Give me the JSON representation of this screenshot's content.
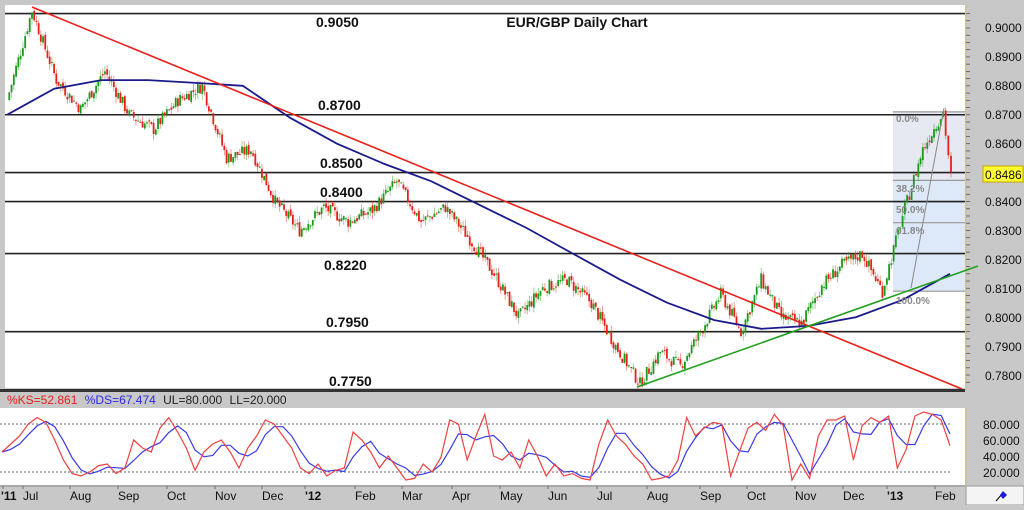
{
  "chart_data": [
    {
      "type": "candlestick",
      "title": "EUR/GBP Daily Chart",
      "xlabel": "",
      "ylabel": "",
      "ylim": [
        0.775,
        0.908
      ],
      "grid": false,
      "y_ticks": [
        "0.9000",
        "0.8900",
        "0.8800",
        "0.8700",
        "0.8600",
        "0.8500",
        "0.8400",
        "0.8300",
        "0.8200",
        "0.8100",
        "0.8000",
        "0.7900",
        "0.7800"
      ],
      "x_ticks": [
        "'11",
        "Jul",
        "Aug",
        "Sep",
        "Oct",
        "Nov",
        "Dec",
        "'12",
        "Feb",
        "Mar",
        "Apr",
        "May",
        "Jun",
        "Jul",
        "Aug",
        "Sep",
        "Oct",
        "Nov",
        "Dec",
        "'13",
        "Feb"
      ],
      "last_price": "0.8486",
      "horizontal_levels": [
        {
          "label": "0.9050",
          "value": 0.905
        },
        {
          "label": "0.8700",
          "value": 0.87
        },
        {
          "label": "0.8500",
          "value": 0.85
        },
        {
          "label": "0.8400",
          "value": 0.84
        },
        {
          "label": "0.8220",
          "value": 0.822
        },
        {
          "label": "0.7950",
          "value": 0.795
        },
        {
          "label": "0.7750",
          "value": 0.775
        }
      ],
      "fibonacci": {
        "high": 0.871,
        "low": 0.809,
        "levels": [
          {
            "label": "0.0%",
            "ratio": 0.0
          },
          {
            "label": "38.2%",
            "ratio": 0.382
          },
          {
            "label": "50.0%",
            "ratio": 0.5
          },
          {
            "label": "61.8%",
            "ratio": 0.618
          },
          {
            "label": "100.0%",
            "ratio": 1.0
          }
        ]
      },
      "trendlines": [
        {
          "name": "downtrend-resistance",
          "color": "#e8201a",
          "from": [
            "Jul 2011",
            0.907
          ],
          "to": [
            "Feb 2013",
            0.776
          ]
        },
        {
          "name": "uptrend-support",
          "color": "#22a020",
          "from": [
            "Jul 2012",
            0.777
          ],
          "to": [
            "Feb 2013",
            0.817
          ]
        }
      ],
      "moving_average": {
        "name": "200-day MA",
        "color": "#1a1a8c",
        "points": [
          [
            "Jun 2011",
            0.87
          ],
          [
            "Jul 2011",
            0.879
          ],
          [
            "Aug 2011",
            0.882
          ],
          [
            "Sep 2011",
            0.882
          ],
          [
            "Oct 2011",
            0.881
          ],
          [
            "Nov 2011",
            0.88
          ],
          [
            "Dec 2011",
            0.869
          ],
          [
            "Jan 2012",
            0.86
          ],
          [
            "Feb 2012",
            0.853
          ],
          [
            "Mar 2012",
            0.847
          ],
          [
            "Apr 2012",
            0.839
          ],
          [
            "May 2012",
            0.831
          ],
          [
            "Jun 2012",
            0.822
          ],
          [
            "Jul 2012",
            0.813
          ],
          [
            "Aug 2012",
            0.805
          ],
          [
            "Sep 2012",
            0.799
          ],
          [
            "Oct 2012",
            0.796
          ],
          [
            "Nov 2012",
            0.797
          ],
          [
            "Dec 2012",
            0.8
          ],
          [
            "Jan 2013",
            0.806
          ],
          [
            "Feb 2013",
            0.815
          ]
        ]
      },
      "price_path": [
        [
          "Jun 2011",
          0.875
        ],
        [
          "early Jul 2011",
          0.906
        ],
        [
          "mid Jul 2011",
          0.882
        ],
        [
          "Aug 2011",
          0.872
        ],
        [
          "early Sep 2011",
          0.885
        ],
        [
          "Sep 2011",
          0.87
        ],
        [
          "Oct 2011",
          0.865
        ],
        [
          "Oct 2011",
          0.875
        ],
        [
          "early Nov 2011",
          0.88
        ],
        [
          "Nov 2011",
          0.855
        ],
        [
          "Dec 2011",
          0.858
        ],
        [
          "Dec 2011",
          0.84
        ],
        [
          "Jan 2012",
          0.83
        ],
        [
          "Jan 2012",
          0.838
        ],
        [
          "Feb 2012",
          0.833
        ],
        [
          "Feb 2012",
          0.837
        ],
        [
          "early Mar 2012",
          0.847
        ],
        [
          "Mar 2012",
          0.833
        ],
        [
          "Mar 2012",
          0.838
        ],
        [
          "Apr 2012",
          0.827
        ],
        [
          "Apr 2012",
          0.815
        ],
        [
          "May 2012",
          0.8
        ],
        [
          "May 2012",
          0.81
        ],
        [
          "Jun 2012",
          0.813
        ],
        [
          "Jun 2012",
          0.805
        ],
        [
          "Jul 2012",
          0.79
        ],
        [
          "late Jul 2012",
          0.777
        ],
        [
          "Aug 2012",
          0.788
        ],
        [
          "Aug 2012",
          0.783
        ],
        [
          "Sep 2012",
          0.795
        ],
        [
          "Sep 2012",
          0.808
        ],
        [
          "Oct 2012",
          0.795
        ],
        [
          "Oct 2012",
          0.813
        ],
        [
          "Nov 2012",
          0.8
        ],
        [
          "Nov 2012",
          0.798
        ],
        [
          "Dec 2012",
          0.811
        ],
        [
          "Dec 2012",
          0.818
        ],
        [
          "early Jan 2013",
          0.822
        ],
        [
          "Jan 2013",
          0.809
        ],
        [
          "Jan 2013",
          0.835
        ],
        [
          "Jan 2013",
          0.858
        ],
        [
          "Feb 2013",
          0.871
        ],
        [
          "Feb 2013",
          0.8486
        ]
      ]
    },
    {
      "type": "line",
      "title": "Slow Stochastic",
      "series": [
        {
          "name": "%KS",
          "value": "52.861",
          "color": "#e8201a"
        },
        {
          "name": "%DS",
          "value": "67.474",
          "color": "#2a2ae8"
        }
      ],
      "upper_limit": 80,
      "lower_limit": 20,
      "ylim": [
        0,
        100
      ],
      "y_ticks": [
        "80.000",
        "60.000",
        "40.000",
        "20.000"
      ],
      "k_values": [
        45,
        55,
        65,
        80,
        88,
        82,
        60,
        35,
        18,
        15,
        20,
        28,
        30,
        18,
        25,
        60,
        50,
        45,
        75,
        88,
        70,
        50,
        22,
        45,
        55,
        60,
        45,
        25,
        50,
        65,
        85,
        80,
        65,
        50,
        25,
        18,
        30,
        15,
        22,
        25,
        70,
        60,
        45,
        25,
        40,
        25,
        10,
        12,
        30,
        20,
        38,
        85,
        80,
        35,
        65,
        92,
        40,
        35,
        45,
        25,
        60,
        40,
        15,
        30,
        15,
        18,
        12,
        10,
        55,
        85,
        65,
        55,
        40,
        30,
        10,
        12,
        15,
        35,
        88,
        65,
        75,
        82,
        80,
        15,
        45,
        75,
        82,
        72,
        92,
        78,
        10,
        30,
        12,
        65,
        85,
        85,
        90,
        35,
        78,
        88,
        82,
        90,
        25,
        48,
        90,
        95,
        92,
        85,
        52.861
      ]
    }
  ],
  "header": {
    "title": "EUR/GBP Daily Chart"
  },
  "price_panel": {
    "last_price_badge": "0.8486",
    "level_labels": [
      "0.9050",
      "0.8700",
      "0.8500",
      "0.8400",
      "0.8220",
      "0.7950",
      "0.7750"
    ],
    "fib_labels": [
      "0.0%",
      "38.2%",
      "50.0%",
      "61.8%",
      "100.0%"
    ],
    "axis_ticks": [
      "0.9000",
      "0.8900",
      "0.8800",
      "0.8700",
      "0.8600",
      "0.8500",
      "0.8400",
      "0.8300",
      "0.8200",
      "0.8100",
      "0.8000",
      "0.7900",
      "0.7800"
    ]
  },
  "stoch_panel": {
    "ks_label": "%KS=52.861",
    "ds_label": "%DS=67.474",
    "ul_label": "UL=80.000",
    "ll_label": "LL=20.000",
    "axis_ticks": [
      "80.000",
      "60.000",
      "40.000",
      "20.000"
    ]
  },
  "date_axis": {
    "labels": [
      {
        "text": "'11",
        "bold": true
      },
      {
        "text": "Jul",
        "bold": false
      },
      {
        "text": "Aug",
        "bold": false
      },
      {
        "text": "Sep",
        "bold": false
      },
      {
        "text": "Oct",
        "bold": false
      },
      {
        "text": "Nov",
        "bold": false
      },
      {
        "text": "Dec",
        "bold": false
      },
      {
        "text": "'12",
        "bold": true
      },
      {
        "text": "Feb",
        "bold": false
      },
      {
        "text": "Mar",
        "bold": false
      },
      {
        "text": "Apr",
        "bold": false
      },
      {
        "text": "May",
        "bold": false
      },
      {
        "text": "Jun",
        "bold": false
      },
      {
        "text": "Jul",
        "bold": false
      },
      {
        "text": "Aug",
        "bold": false
      },
      {
        "text": "Sep",
        "bold": false
      },
      {
        "text": "Oct",
        "bold": false
      },
      {
        "text": "Nov",
        "bold": false
      },
      {
        "text": "Dec",
        "bold": false
      },
      {
        "text": "'13",
        "bold": true
      },
      {
        "text": "Feb",
        "bold": false
      }
    ]
  },
  "colors": {
    "bull": "#1a9a1a",
    "bear": "#e8201a",
    "ma": "#1a1a8c",
    "trend_down": "#e8201a",
    "trend_up": "#22a020",
    "level_line": "#222222",
    "fib_fill": "#dde8f8",
    "fib_line": "#999999",
    "badge_bg": "#ffff33",
    "axis_bg": "#c8c8c8",
    "ks": "#e8201a",
    "ds": "#2a2ae8"
  }
}
